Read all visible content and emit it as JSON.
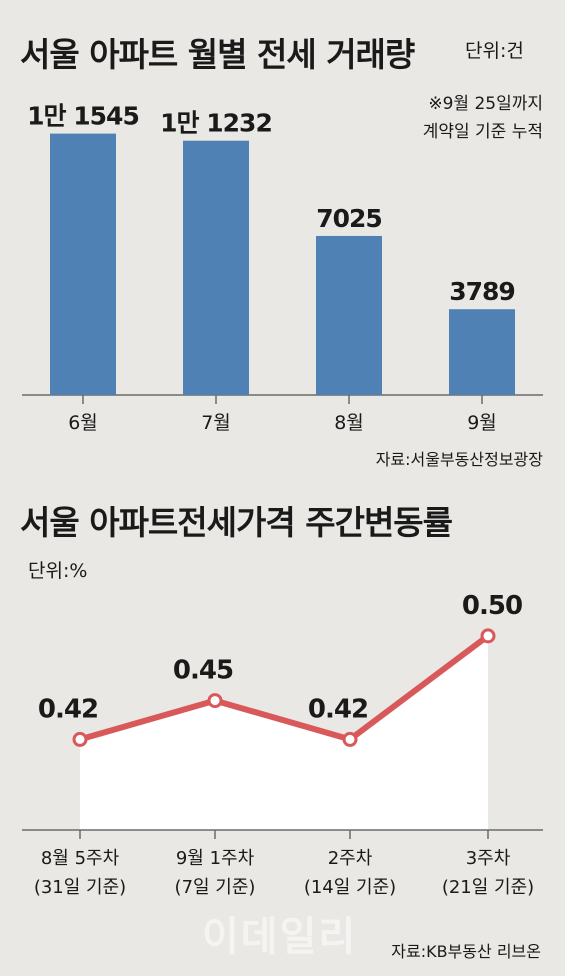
{
  "charts": [
    {
      "title": "서울 아파트 월별 전세 거래량",
      "unit": "단위:건",
      "note_lines": [
        "※9월 25일까지",
        "계약일 기준 누적"
      ],
      "source": "자료:서울부동산정보광장"
    },
    {
      "title": "서울 아파트전세가격 주간변동률",
      "unit": "단위:%",
      "source": "자료:KB부동산 리브온"
    }
  ],
  "watermark": "이데일리",
  "colors": {
    "background": "#e9e8e4",
    "bar": "#4f81b4",
    "line": "#d9595b",
    "area": "#ffffff"
  },
  "chart_data": [
    {
      "type": "bar",
      "categories": [
        "6월",
        "7월",
        "8월",
        "9월"
      ],
      "values": [
        11545,
        11232,
        7025,
        3789
      ],
      "value_labels": [
        "1만 1545",
        "1만 1232",
        "7025",
        "3789"
      ],
      "ylim": [
        0,
        12500
      ],
      "grid": false,
      "legend": "none"
    },
    {
      "type": "area",
      "categories": [
        [
          "8월 5주차",
          "(31일 기준)"
        ],
        [
          "9월 1주차",
          "(7일 기준)"
        ],
        [
          "2주차",
          "(14일 기준)"
        ],
        [
          "3주차",
          "(21일 기준)"
        ]
      ],
      "values": [
        0.42,
        0.45,
        0.42,
        0.5
      ],
      "value_labels": [
        "0.42",
        "0.45",
        "0.42",
        "0.50"
      ],
      "ylim": [
        0.35,
        0.52
      ],
      "grid": false,
      "legend": "none"
    }
  ]
}
